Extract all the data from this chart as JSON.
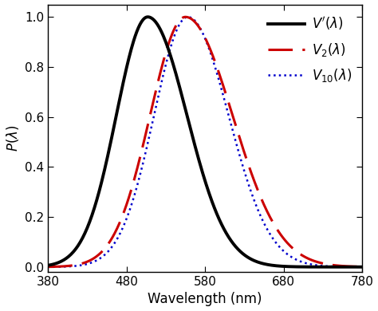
{
  "xlabel": "Wavelength (nm)",
  "ylabel": "$P(\\lambda)$",
  "xlim": [
    380,
    780
  ],
  "ylim": [
    -0.02,
    1.05
  ],
  "xticks": [
    380,
    480,
    580,
    680,
    780
  ],
  "yticks": [
    0.0,
    0.2,
    0.4,
    0.6,
    0.8,
    1.0
  ],
  "color_vprime": "#000000",
  "color_v2": "#cc0000",
  "color_v10": "#0000cc",
  "linewidth_vprime": 2.8,
  "linewidth_v2": 2.2,
  "linewidth_v10": 1.8,
  "figsize": [
    4.74,
    3.9
  ],
  "dpi": 100,
  "vprime_peak": 507,
  "vprime_sl": 40,
  "vprime_sr": 50,
  "v2_peak": 555,
  "v2_sl": 45,
  "v2_sr": 60,
  "v10_peak": 558,
  "v10_sl": 43,
  "v10_sr": 52
}
